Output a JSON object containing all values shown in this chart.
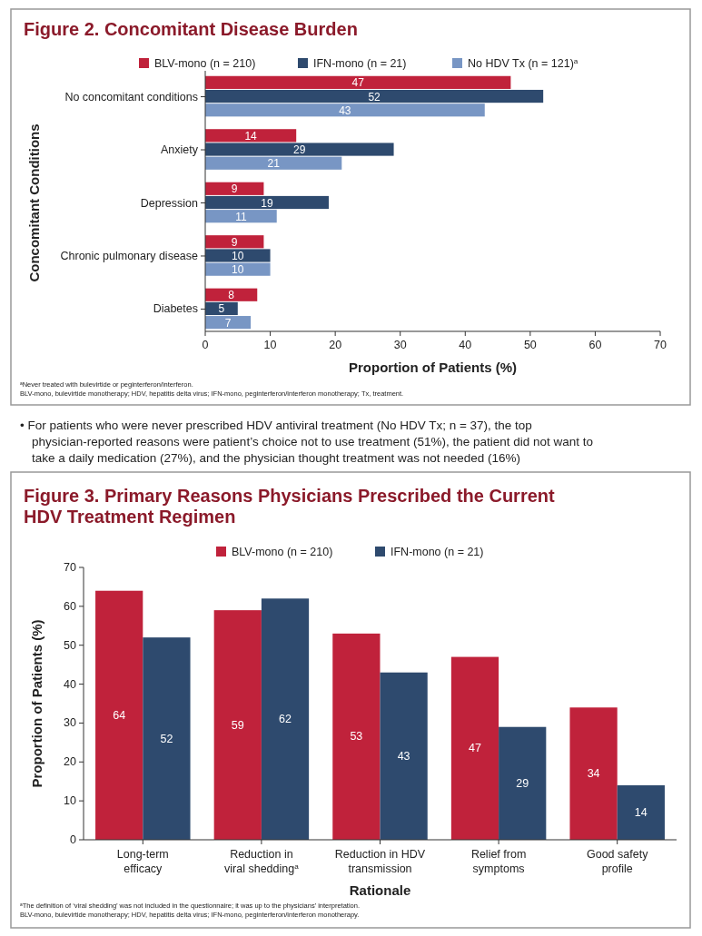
{
  "chart_data": [
    {
      "type": "bar",
      "orientation": "horizontal",
      "title": "Figure 2. Concomitant Disease Burden",
      "xlabel": "Proportion of Patients (%)",
      "ylabel": "Concomitant Conditions",
      "categories": [
        "No concomitant conditions",
        "Anxiety",
        "Depression",
        "Chronic pulmonary disease",
        "Diabetes"
      ],
      "series": [
        {
          "name": "BLV-mono (n = 210)",
          "color": "#c0223b",
          "values": [
            47,
            14,
            9,
            9,
            8
          ]
        },
        {
          "name": "IFN-mono (n = 21)",
          "color": "#2e4a6e",
          "values": [
            52,
            29,
            19,
            10,
            5
          ]
        },
        {
          "name": "No HDV Tx (n = 121)$^{a}$",
          "color": "#7896c4",
          "values": [
            43,
            21,
            11,
            10,
            7
          ]
        }
      ],
      "xlim": [
        0,
        70
      ],
      "xticks": [
        0,
        10,
        20,
        30,
        40,
        50,
        60,
        70
      ],
      "grid": false,
      "legend": "top",
      "data_labels": true,
      "annotations": [
        "$^{a}$Never treated with bulevirtide or peginterferon/interferon.",
        "BLV-mono, bulevirtide monotherapy; HDV, hepatitis delta virus; IFN-mono, peginterferon/interferon monotherapy; Tx, treatment.",
        "• For patients who were never prescribed HDV antiviral treatment (No HDV Tx; n = 37), the top physician-reported reasons were patient’s choice not to use treatment (51%), the patient did not want to take a daily medication (27%), and the physician thought treatment was not needed (16%)"
      ]
    },
    {
      "type": "bar",
      "title": "Figure 3. Primary Reasons Physicians Prescribed the Current HDV Treatment Regimen",
      "xlabel": "Rationale",
      "ylabel": "Proportion of Patients (%)",
      "categories": [
        "Long-term efficacy",
        "Reduction in viral shedding$^{a}$",
        "Reduction in HDV transmission",
        "Relief from symptoms",
        "Good safety profile"
      ],
      "series": [
        {
          "name": "BLV-mono (n = 210)",
          "color": "#c0223b",
          "values": [
            64,
            59,
            53,
            47,
            34
          ]
        },
        {
          "name": "IFN-mono (n = 21)",
          "color": "#2e4a6e",
          "values": [
            52,
            62,
            43,
            29,
            14
          ]
        }
      ],
      "ylim": [
        0,
        70
      ],
      "yticks": [
        0,
        10,
        20,
        30,
        40,
        50,
        60,
        70
      ],
      "grid": false,
      "legend": "top",
      "data_labels": true,
      "annotations": [
        "$^{a}$The definition of ‘viral shedding’ was not included in the questionnaire; it was up to the physicians’ interpretation.",
        "BLV-mono, bulevirtide monotherapy; HDV, hepatitis delta virus; IFN-mono, peginterferon/interferon monotherapy."
      ]
    }
  ]
}
